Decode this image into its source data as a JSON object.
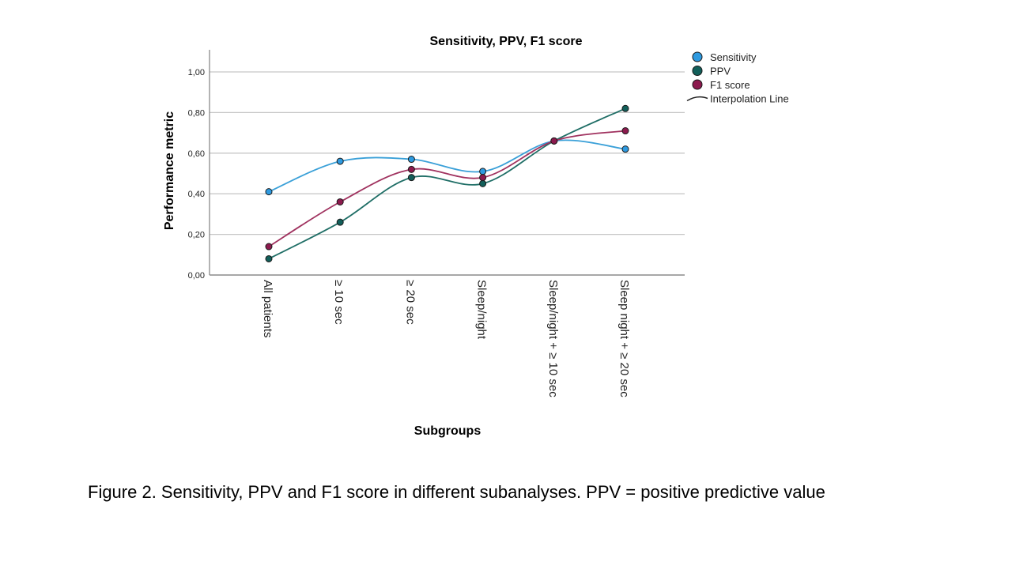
{
  "chart_data": {
    "type": "line",
    "title": "Sensitivity, PPV, F1 score",
    "xlabel": "Subgroups",
    "ylabel": "Performance metric",
    "ylim": [
      0,
      1.1
    ],
    "yticks": [
      0,
      0.2,
      0.4,
      0.6,
      0.8,
      1.0
    ],
    "ytick_labels": [
      "0,00",
      "0,20",
      "0,40",
      "0,60",
      "0,80",
      "1,00"
    ],
    "grid": true,
    "legend_position": "top-right",
    "categories": [
      "All patients",
      "≥ 10 sec",
      "≥ 20 sec",
      "Sleep/night",
      "Sleep/night + ≥ 10 sec",
      "Sleep night + ≥ 20 sec"
    ],
    "series": [
      {
        "name": "Sensitivity",
        "color": "#2e9ae0",
        "line_color": "#3aa0d8",
        "values": [
          0.41,
          0.56,
          0.57,
          0.51,
          0.66,
          0.62
        ]
      },
      {
        "name": "PPV",
        "color": "#125f5a",
        "line_color": "#1f6e66",
        "values": [
          0.08,
          0.26,
          0.48,
          0.45,
          0.66,
          0.82
        ]
      },
      {
        "name": "F1 score",
        "color": "#8c1a4e",
        "line_color": "#a0325f",
        "values": [
          0.14,
          0.36,
          0.52,
          0.48,
          0.66,
          0.71
        ]
      }
    ],
    "legend_extra": "Interpolation Line",
    "interpolation": "spline"
  },
  "caption": "Figure 2. Sensitivity, PPV and F1 score in different subanalyses. PPV = positive predictive value"
}
